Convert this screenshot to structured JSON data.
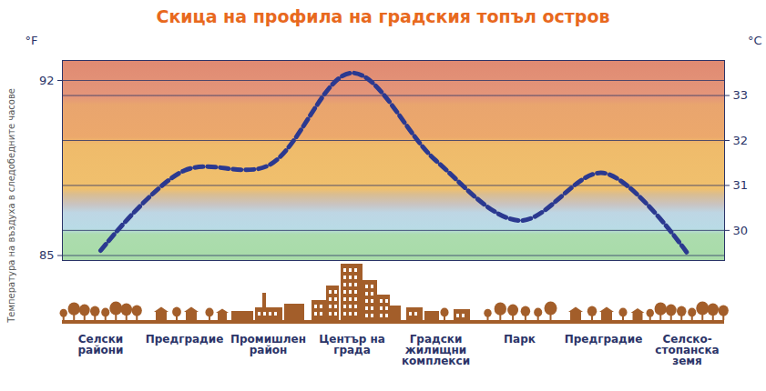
{
  "chart_data": {
    "type": "line",
    "title": "Скица на профила на градския топъл остров",
    "y_label": "Температура на въздуха в следобедните часове",
    "y_axis_unit": "°F",
    "y2_axis_unit": "°C",
    "categories": [
      "Селски райони",
      "Предградие",
      "Промишлен район",
      "Център на града",
      "Градски жилищни комплекси",
      "Парк",
      "Предградие",
      "Селско-стопанска земя"
    ],
    "values": [
      85.2,
      88.4,
      88.6,
      92.3,
      88.8,
      86.4,
      88.3,
      85.1
    ],
    "color": "#2b3990",
    "line_style": "dashed",
    "ylim": [
      84.8,
      92.8
    ],
    "yticks": [
      85,
      92
    ],
    "y2lim": [
      29.33,
      33.78
    ],
    "y2ticks": [
      30,
      31,
      32,
      33
    ],
    "grid": true
  }
}
